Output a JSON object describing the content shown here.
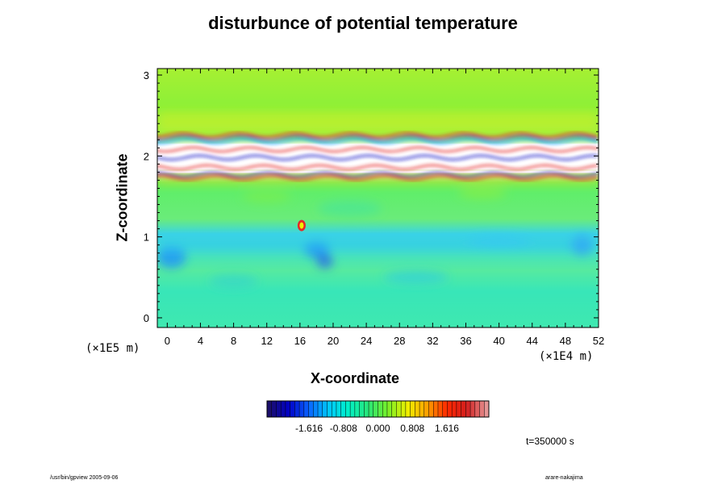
{
  "chart_data": {
    "type": "heatmap",
    "title": "disturbunce of potential temperature",
    "xlabel": "X-coordinate",
    "ylabel": "Z-coordinate",
    "x_unit": "(×1E4 m)",
    "y_unit": "(×1E5 m)",
    "xlim": [
      -1.2,
      52
    ],
    "ylim": [
      -0.12,
      3.08
    ],
    "x_ticks": [
      "0",
      "4",
      "8",
      "12",
      "16",
      "20",
      "24",
      "28",
      "32",
      "36",
      "40",
      "44",
      "48",
      "52"
    ],
    "y_ticks": [
      "0",
      "1",
      "2",
      "3"
    ],
    "colorbar": {
      "ticks": [
        "-1.616",
        "-0.808",
        "0.000",
        "0.808",
        "1.616"
      ],
      "range": [
        -2.6,
        2.6
      ],
      "colors": [
        "#1b0f6b",
        "#0000c8",
        "#0a64ff",
        "#00c8ff",
        "#00f0c8",
        "#28e678",
        "#78f028",
        "#f0f000",
        "#ffa000",
        "#ff2800",
        "#d21e1e",
        "#e69696"
      ]
    },
    "structure": [
      {
        "name": "lower region",
        "z": [
          0,
          1.7
        ],
        "value": "~ -0.3 to 0.1"
      },
      {
        "name": "cold band",
        "z": [
          0.8,
          1.0
        ],
        "value": "~ -0.8"
      },
      {
        "name": "warm thermal",
        "x": 16,
        "z": 1.15,
        "value": "~ 1.6"
      },
      {
        "name": "white out-of-range layers",
        "z": [
          1.8,
          2.15
        ],
        "value": "> 2.6"
      },
      {
        "name": "upper region",
        "z": [
          2.3,
          3.0
        ],
        "value": "~ 0.3"
      }
    ],
    "grid": false
  },
  "annotations": {
    "timestamp": "t=350000 s",
    "footer_left": "/usr/bin/gpview 2005-09-06",
    "footer_right": "arare-nakajima"
  }
}
